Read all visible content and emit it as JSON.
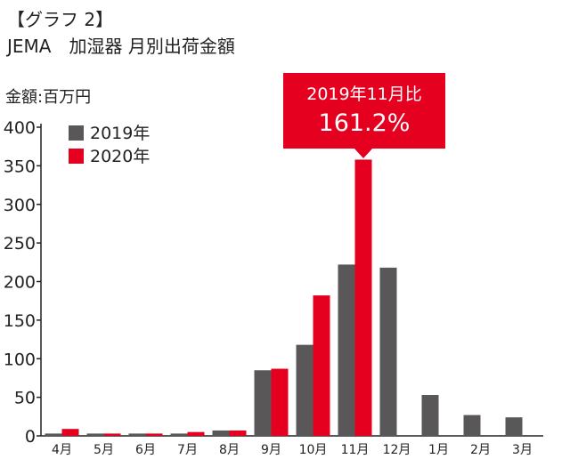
{
  "chart_data": {
    "type": "bar",
    "heading": "【グラフ 2】",
    "title": "JEMA　加湿器 月別出荷金額",
    "ylabel": "金額:百万円",
    "ylim": [
      0,
      400
    ],
    "yticks": [
      0,
      50,
      100,
      150,
      200,
      250,
      300,
      350,
      400
    ],
    "categories": [
      "4月",
      "5月",
      "6月",
      "7月",
      "8月",
      "9月",
      "10月",
      "11月",
      "12月",
      "1月",
      "2月",
      "3月"
    ],
    "highlight_category": "11月",
    "series": [
      {
        "name": "2019年",
        "color": "#595757",
        "values": [
          3,
          3,
          3,
          3,
          7,
          85,
          118,
          222,
          218,
          53,
          27,
          24
        ]
      },
      {
        "name": "2020年",
        "color": "#e60020",
        "values": [
          9,
          3,
          3,
          5,
          7,
          87,
          182,
          358,
          null,
          null,
          null,
          null
        ]
      }
    ],
    "annotation": {
      "line1": "2019年11月比",
      "line2": "161.2%",
      "color": "#e60020",
      "category": "11月"
    },
    "legend_position": "top-left",
    "grid": false
  }
}
